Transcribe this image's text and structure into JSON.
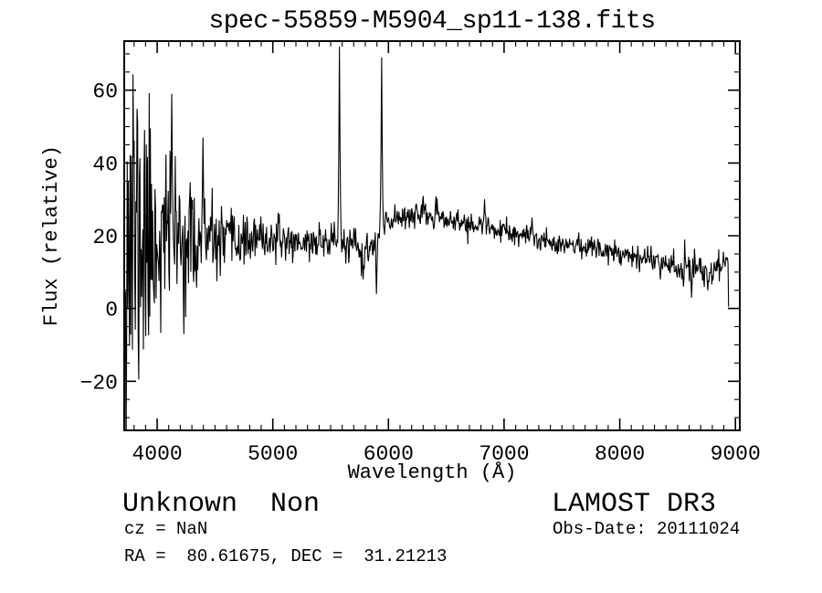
{
  "chart_data": {
    "type": "line",
    "title": "spec-55859-M5904_sp11-138.fits",
    "xlabel": "Wavelength (Å)",
    "ylabel": "Flux (relative)",
    "xlim": [
      3715,
      9038
    ],
    "ylim": [
      -33.5,
      73.5
    ],
    "xticks": [
      4000,
      5000,
      6000,
      7000,
      8000,
      9000
    ],
    "xtick_minor_step": 100,
    "yticks": [
      -20,
      0,
      20,
      40,
      60
    ],
    "ytick_minor_step": 5,
    "grid": false,
    "legend_position": "none",
    "line_color": "#000000",
    "background_color": "#ffffff",
    "series": [
      {
        "name": "spectrum",
        "x_start": 3716,
        "x_end": 8945,
        "sample_step": 5,
        "random_seed": 11,
        "continuum_points": [
          [
            3716,
            20
          ],
          [
            3900,
            20
          ],
          [
            4100,
            19
          ],
          [
            4300,
            18
          ],
          [
            4500,
            18
          ],
          [
            4700,
            18.5
          ],
          [
            5000,
            19
          ],
          [
            5300,
            18
          ],
          [
            5560,
            19
          ],
          [
            5650,
            17
          ],
          [
            5800,
            15.5
          ],
          [
            5880,
            17
          ],
          [
            5950,
            22
          ],
          [
            6050,
            25
          ],
          [
            6200,
            26
          ],
          [
            6350,
            25.5
          ],
          [
            6500,
            24.5
          ],
          [
            6700,
            23
          ],
          [
            6900,
            22
          ],
          [
            7100,
            20
          ],
          [
            7300,
            19
          ],
          [
            7500,
            18
          ],
          [
            7700,
            17
          ],
          [
            7900,
            16
          ],
          [
            8100,
            15
          ],
          [
            8250,
            13.5
          ],
          [
            8400,
            13
          ],
          [
            8550,
            11.5
          ],
          [
            8650,
            12
          ],
          [
            8800,
            9.5
          ],
          [
            8900,
            13
          ],
          [
            8945,
            14
          ]
        ],
        "noise_sigma_points": [
          [
            3716,
            26
          ],
          [
            3750,
            32
          ],
          [
            3820,
            26
          ],
          [
            3900,
            20
          ],
          [
            3960,
            15
          ],
          [
            4050,
            12
          ],
          [
            4150,
            10
          ],
          [
            4300,
            8
          ],
          [
            4450,
            6
          ],
          [
            4600,
            4
          ],
          [
            4800,
            3
          ],
          [
            5200,
            2.3
          ],
          [
            5600,
            2.4
          ],
          [
            5850,
            3
          ],
          [
            6000,
            2
          ],
          [
            6500,
            1.6
          ],
          [
            7000,
            1.5
          ],
          [
            7600,
            1.4
          ],
          [
            8200,
            1.8
          ],
          [
            8600,
            2.4
          ],
          [
            8945,
            2
          ]
        ],
        "emission_spikes": [
          [
            4126,
            59
          ],
          [
            4395,
            47
          ],
          [
            5577,
            72
          ],
          [
            5940,
            69
          ],
          [
            6830,
            30
          ],
          [
            7240,
            25
          ]
        ],
        "absorption_dips": [
          [
            5780,
            8
          ],
          [
            5895,
            4
          ],
          [
            8350,
            8
          ],
          [
            8550,
            6
          ],
          [
            8620,
            3
          ],
          [
            8760,
            5
          ]
        ],
        "end_drop_flux": 0.5
      }
    ]
  },
  "footer": {
    "classification": "Unknown  Non",
    "cz": "cz = NaN",
    "coordinates": "RA =  80.61675, DEC =  31.21213",
    "survey": "LAMOST DR3",
    "obs_date": "Obs-Date: 20111024"
  }
}
